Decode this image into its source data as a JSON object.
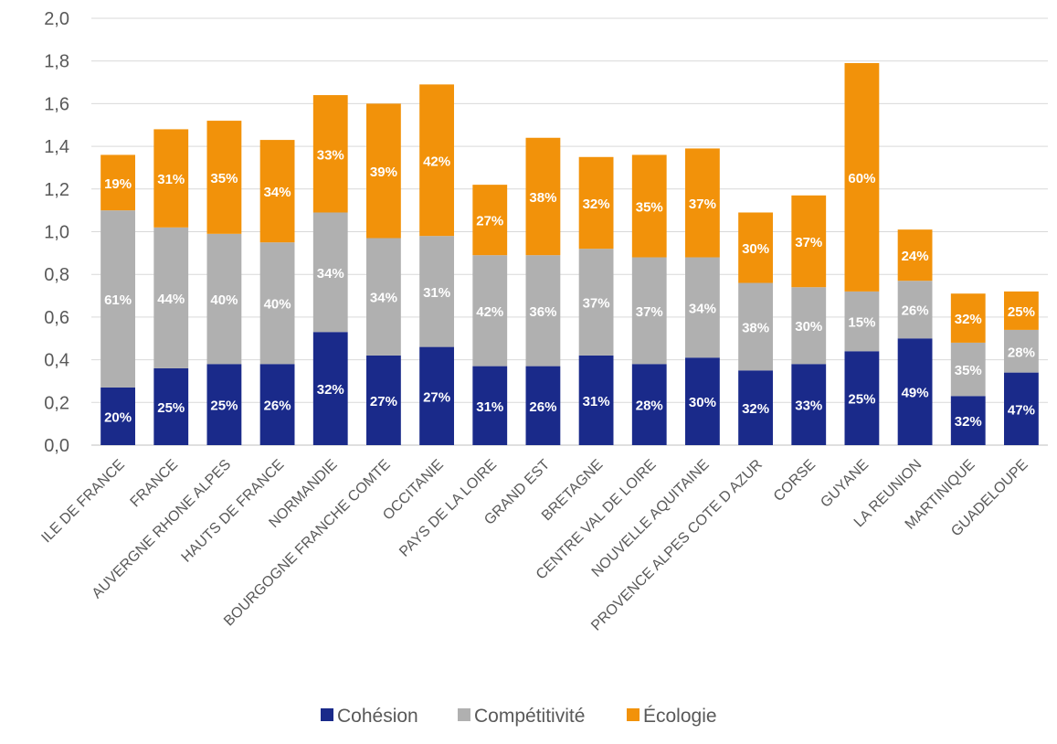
{
  "chart_data": {
    "type": "bar",
    "stacked": true,
    "title": "",
    "xlabel": "",
    "ylabel": "",
    "ylim": [
      0,
      2.0
    ],
    "yticks": [
      "0,0",
      "0,2",
      "0,4",
      "0,6",
      "0,8",
      "1,0",
      "1,2",
      "1,4",
      "1,6",
      "1,8",
      "2,0"
    ],
    "grid": "horizontal",
    "legend_position": "bottom",
    "colors": {
      "Cohésion": "#1a2a8a",
      "Compétitivité": "#b0b0b0",
      "Écologie": "#f2920a"
    },
    "categories": [
      "ILE DE FRANCE",
      "FRANCE",
      "AUVERGNE RHONE ALPES",
      "HAUTS DE FRANCE",
      "NORMANDIE",
      "BOURGOGNE FRANCHE COMTE",
      "OCCITANIE",
      "PAYS DE LA LOIRE",
      "GRAND EST",
      "BRETAGNE",
      "CENTRE VAL DE LOIRE",
      "NOUVELLE AQUITAINE",
      "PROVENCE ALPES COTE D AZUR",
      "CORSE",
      "GUYANE",
      "LA REUNION",
      "MARTINIQUE",
      "GUADELOUPE"
    ],
    "series": [
      {
        "name": "Cohésion",
        "values": [
          0.27,
          0.36,
          0.38,
          0.38,
          0.53,
          0.42,
          0.46,
          0.37,
          0.37,
          0.42,
          0.38,
          0.41,
          0.35,
          0.38,
          0.44,
          0.5,
          0.23,
          0.34
        ],
        "labels": [
          "20%",
          "25%",
          "25%",
          "26%",
          "32%",
          "27%",
          "27%",
          "31%",
          "26%",
          "31%",
          "28%",
          "30%",
          "32%",
          "33%",
          "25%",
          "49%",
          "32%",
          "47%"
        ]
      },
      {
        "name": "Compétitivité",
        "values": [
          0.83,
          0.66,
          0.61,
          0.57,
          0.56,
          0.55,
          0.52,
          0.52,
          0.52,
          0.5,
          0.5,
          0.47,
          0.41,
          0.36,
          0.28,
          0.27,
          0.25,
          0.2
        ],
        "labels": [
          "61%",
          "44%",
          "40%",
          "40%",
          "34%",
          "34%",
          "31%",
          "42%",
          "36%",
          "37%",
          "37%",
          "34%",
          "38%",
          "30%",
          "15%",
          "26%",
          "35%",
          "28%"
        ]
      },
      {
        "name": "Écologie",
        "values": [
          0.26,
          0.46,
          0.53,
          0.48,
          0.55,
          0.63,
          0.71,
          0.33,
          0.55,
          0.43,
          0.48,
          0.51,
          0.33,
          0.43,
          1.07,
          0.24,
          0.23,
          0.18
        ],
        "labels": [
          "19%",
          "31%",
          "35%",
          "34%",
          "33%",
          "39%",
          "42%",
          "27%",
          "38%",
          "32%",
          "35%",
          "37%",
          "30%",
          "37%",
          "60%",
          "24%",
          "32%",
          "25%"
        ]
      }
    ]
  }
}
